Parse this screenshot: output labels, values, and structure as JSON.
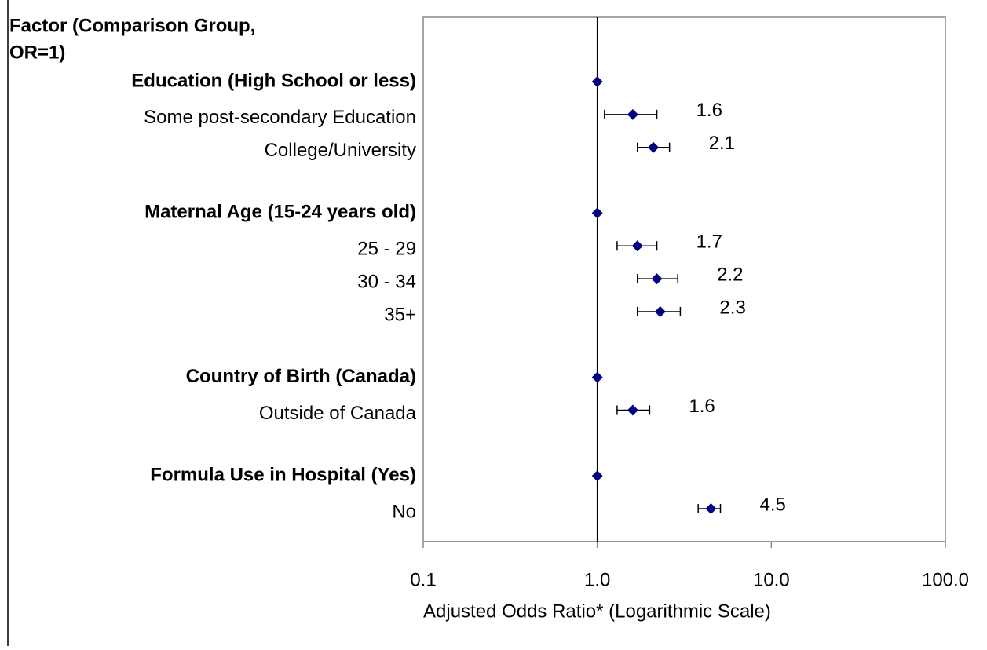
{
  "chart_data": {
    "type": "forest",
    "title_lines": [
      "Factor (Comparison Group,",
      "OR=1)"
    ],
    "x_label": "Adjusted Odds Ratio* (Logarithmic Scale)",
    "categories": [
      "Education (High School or less)",
      "Some post-secondary Education",
      "College/University",
      null,
      "Maternal Age (15-24 years old)",
      "25 - 29",
      "30 - 34",
      "35+",
      null,
      "Country of Birth (Canada)",
      "Outside of Canada",
      null,
      "Formula Use in Hospital (Yes)",
      "No"
    ],
    "values": [
      1,
      1.6,
      2.1,
      null,
      1,
      1.7,
      2.2,
      2.3,
      null,
      1,
      1.6,
      null,
      1,
      4.5
    ],
    "ci_low": [
      null,
      1.1,
      1.7,
      null,
      null,
      1.3,
      1.7,
      1.7,
      null,
      null,
      1.3,
      null,
      null,
      3.8
    ],
    "ci_high": [
      null,
      2.2,
      2.6,
      null,
      null,
      2.2,
      2.9,
      3.0,
      null,
      null,
      2.0,
      null,
      null,
      5.1
    ],
    "color": "#000080",
    "reference_line": 1,
    "xscale": "log",
    "xlim": [
      0.1,
      100
    ],
    "xticks": [
      0.1,
      {
        "value": 1,
        "label": "1.0"
      },
      {
        "value": 10,
        "label": "10.0"
      },
      {
        "value": 100,
        "label": "100.0"
      }
    ]
  }
}
